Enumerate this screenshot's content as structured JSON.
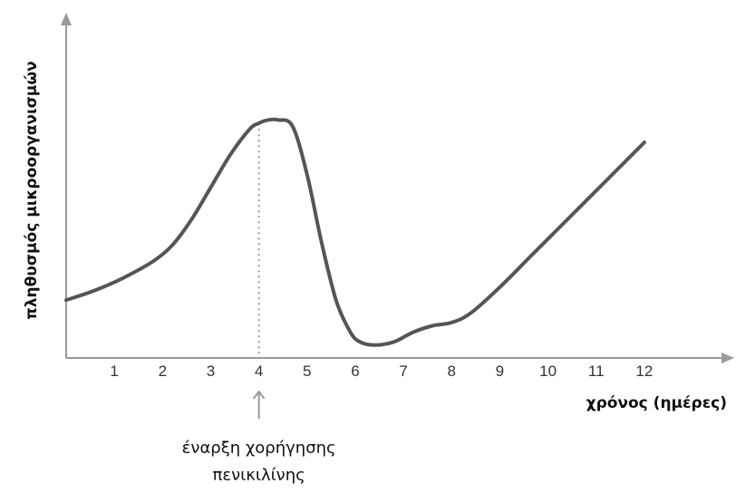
{
  "chart_data": {
    "type": "line",
    "title": "",
    "xlabel": "χρόνος (ημέρες)",
    "ylabel": "πληθυσμός μικροοργανισμών",
    "x_ticks": [
      "1",
      "2",
      "3",
      "4",
      "5",
      "6",
      "7",
      "8",
      "9",
      "10",
      "11",
      "12"
    ],
    "xlim": [
      0,
      13.3
    ],
    "ylim": [
      0,
      100
    ],
    "grid": false,
    "series": [
      {
        "x": [
          0,
          0.6,
          1.2,
          1.8,
          2.2,
          2.6,
          3.0,
          3.4,
          3.8,
          4.0,
          4.2,
          4.4,
          4.7,
          5.0,
          5.3,
          5.6,
          5.9,
          6.1,
          6.4,
          6.8,
          7.2,
          7.6,
          8.0,
          8.4,
          9.0,
          9.6,
          10.2,
          10.8,
          11.4,
          12.0
        ],
        "y": [
          18,
          21,
          25,
          30,
          35,
          43,
          53,
          63,
          71,
          73,
          74,
          74,
          72,
          57,
          36,
          18,
          8,
          5,
          4,
          5,
          8,
          10,
          11,
          14,
          22,
          31,
          40,
          49,
          58,
          67
        ],
        "color": "#555555"
      }
    ],
    "annotations": [
      {
        "x": 4,
        "style": "dotted-vertical-line",
        "label_lines": [
          "έναρξη χορήγησης",
          "πενικιλίνης"
        ]
      }
    ]
  }
}
